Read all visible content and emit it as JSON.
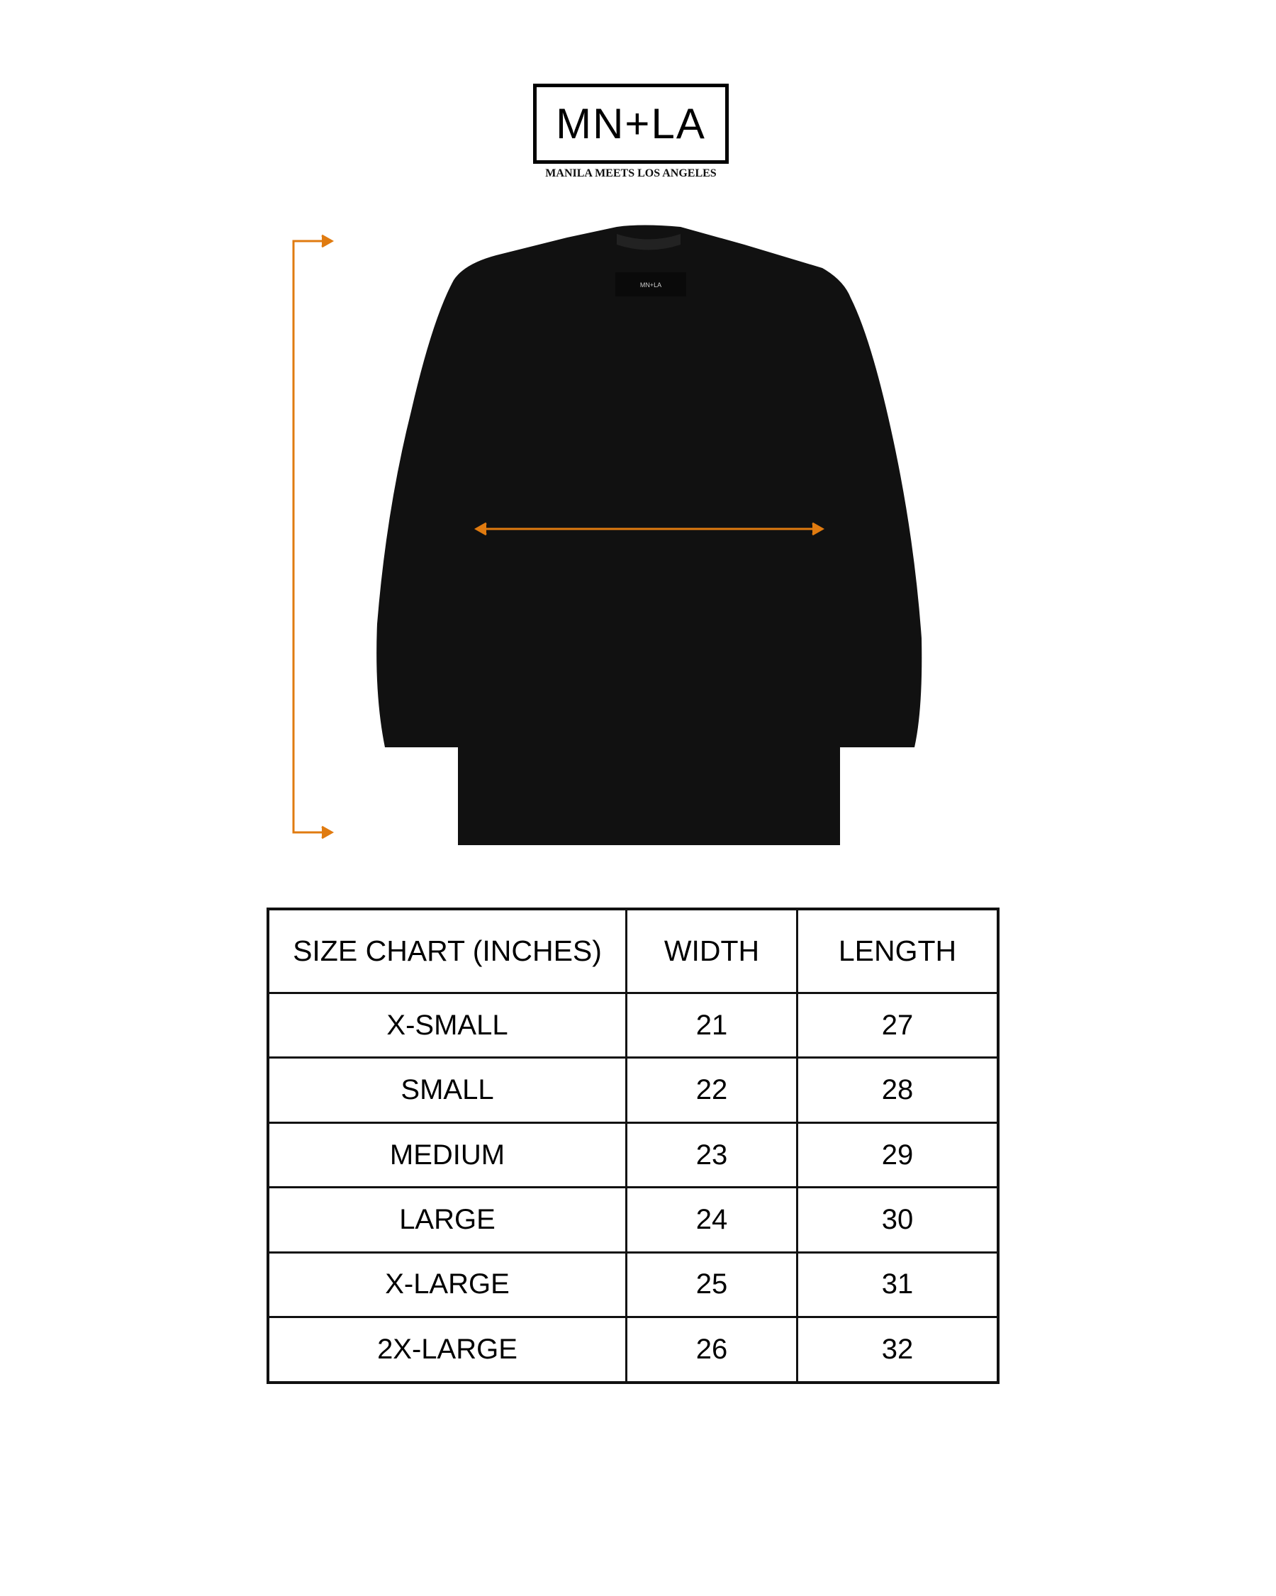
{
  "logo": {
    "text": "MN+LA",
    "tagline": "MANILA MEETS LOS ANGELES",
    "shirt_label": "MN+LA"
  },
  "colors": {
    "arrow": "#e07b10",
    "shirt": "#111111"
  },
  "table": {
    "headers": [
      "SIZE CHART (INCHES)",
      "WIDTH",
      "LENGTH"
    ],
    "rows": [
      [
        "X-SMALL",
        "21",
        "27"
      ],
      [
        "SMALL",
        "22",
        "28"
      ],
      [
        "MEDIUM",
        "23",
        "29"
      ],
      [
        "LARGE",
        "24",
        "30"
      ],
      [
        "X-LARGE",
        "25",
        "31"
      ],
      [
        "2X-LARGE",
        "26",
        "32"
      ]
    ]
  }
}
